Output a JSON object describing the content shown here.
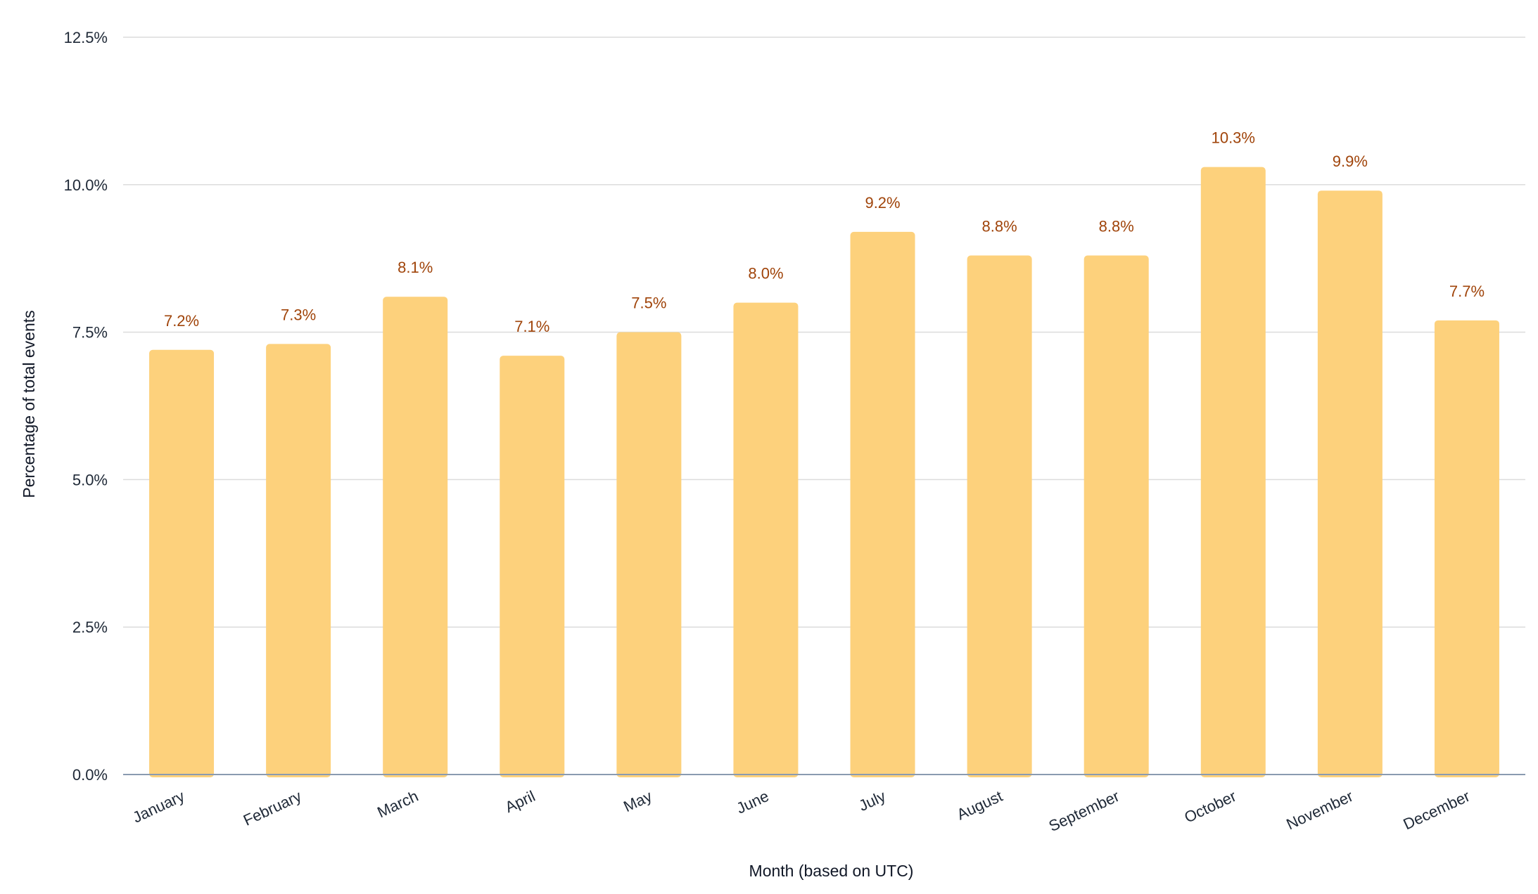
{
  "chart_data": {
    "type": "bar",
    "categories": [
      "January",
      "February",
      "March",
      "April",
      "May",
      "June",
      "July",
      "August",
      "September",
      "October",
      "November",
      "December"
    ],
    "values": [
      7.2,
      7.3,
      8.1,
      7.1,
      7.5,
      8.0,
      9.2,
      8.8,
      8.8,
      10.3,
      9.9,
      7.7
    ],
    "data_labels": [
      "7.2%",
      "7.3%",
      "8.1%",
      "7.1%",
      "7.5%",
      "8.0%",
      "9.2%",
      "8.8%",
      "8.8%",
      "10.3%",
      "9.9%",
      "7.7%"
    ],
    "yticks": [
      0,
      2.5,
      5,
      7.5,
      10,
      12.5
    ],
    "ytick_labels": [
      "0.0%",
      "2.5%",
      "5.0%",
      "7.5%",
      "10.0%",
      "12.5%"
    ],
    "ylim": [
      0,
      12.5
    ],
    "xlabel": "Month (based on UTC)",
    "ylabel": "Percentage of total events",
    "title": "",
    "grid": true,
    "legend": "none",
    "colors": {
      "bar": "#fdd17c",
      "data_label": "#a0440a",
      "grid": "#dcdcdc",
      "axis": "#8a9bb0",
      "text": "#1f2937"
    }
  }
}
